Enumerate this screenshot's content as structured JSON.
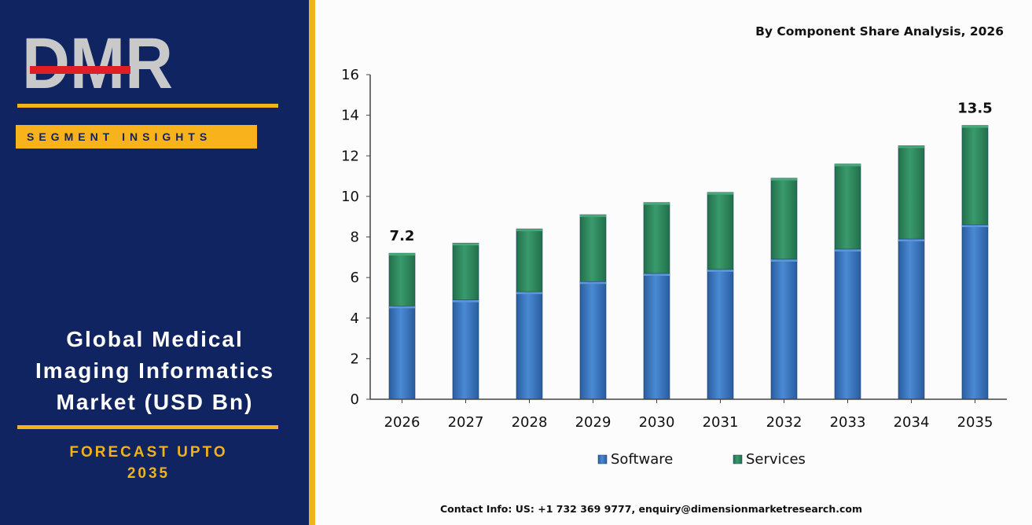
{
  "brand": {
    "logo_text": "DMR",
    "badge_label": "SEGMENT INSIGHTS",
    "title_line1": "Global Medical",
    "title_line2": "Imaging Informatics",
    "title_line3": "Market (USD Bn)",
    "forecast_line1": "FORECAST UPTO",
    "forecast_line2": "2035"
  },
  "colors": {
    "panel": "#0f2460",
    "accent": "#f2b21b",
    "software": "#3a78c2",
    "services": "#2f8a5f"
  },
  "chart_data": {
    "type": "bar",
    "stacked": true,
    "title": "By Component Share Analysis, 2026",
    "categories": [
      "2026",
      "2027",
      "2028",
      "2029",
      "2030",
      "2031",
      "2032",
      "2033",
      "2034",
      "2035"
    ],
    "series": [
      {
        "name": "Software",
        "values": [
          4.6,
          4.9,
          5.3,
          5.8,
          6.2,
          6.4,
          6.9,
          7.4,
          7.9,
          8.6
        ]
      },
      {
        "name": "Services",
        "values": [
          2.6,
          2.8,
          3.1,
          3.3,
          3.5,
          3.8,
          4.0,
          4.2,
          4.6,
          4.9
        ]
      }
    ],
    "ylim": [
      0,
      16
    ],
    "yticks": [
      "0",
      "2",
      "4",
      "6",
      "8",
      "10",
      "12",
      "14",
      "16"
    ],
    "data_labels": [
      {
        "category": "2026",
        "text": "7.2"
      },
      {
        "category": "2035",
        "text": "13.5"
      }
    ],
    "legend_position": "bottom",
    "grid": false
  },
  "contact": "Contact Info: US: +1 732 369 9777, enquiry@dimensionmarketresearch.com"
}
